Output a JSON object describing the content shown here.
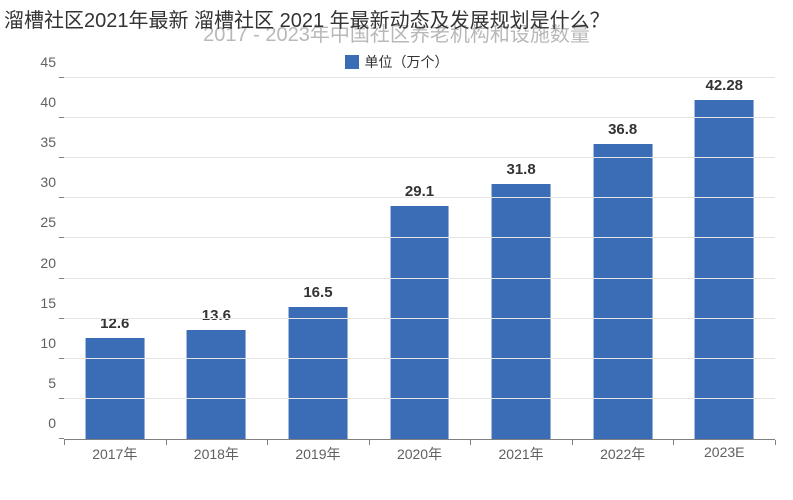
{
  "overlay_title": "溜槽社区2021年最新 溜槽社区 2021 年最新动态及发展规划是什么？",
  "background_title": "2017 - 2023年中国社区养老机构和设施数量",
  "legend": {
    "label": "单位（万个）",
    "swatch_color": "#3a6db5"
  },
  "chart": {
    "type": "bar",
    "categories": [
      "2017年",
      "2018年",
      "2019年",
      "2020年",
      "2021年",
      "2022年",
      "2023E"
    ],
    "values": [
      12.6,
      13.6,
      16.5,
      29.1,
      31.8,
      36.8,
      42.28
    ],
    "value_labels": [
      "12.6",
      "13.6",
      "16.5",
      "29.1",
      "31.8",
      "36.8",
      "42.28"
    ],
    "bar_color": "#3a6db5",
    "bar_width_pct": 58,
    "ylim": [
      0,
      45
    ],
    "yticks": [
      0,
      5,
      10,
      15,
      20,
      25,
      30,
      35,
      40,
      45
    ],
    "grid_color": "#e4e4e4",
    "axis_color": "#808080",
    "background_color": "#ffffff",
    "label_fontsize": 14,
    "value_fontsize": 15,
    "value_fontweight": 700
  }
}
